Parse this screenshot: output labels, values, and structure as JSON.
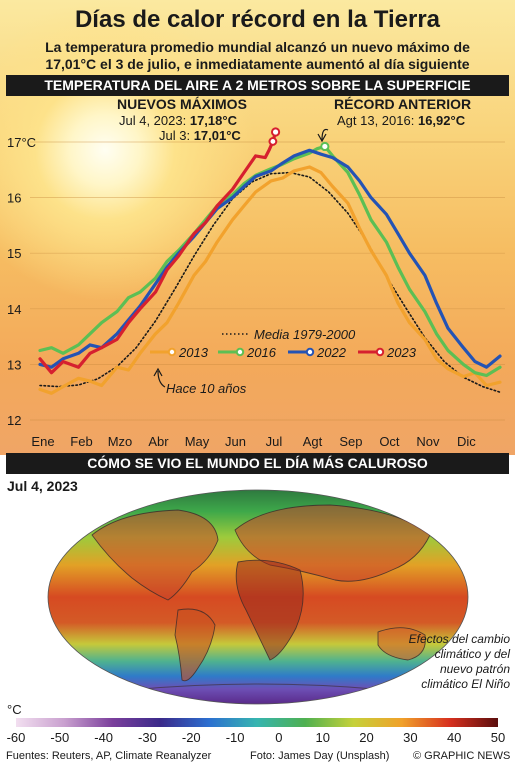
{
  "header": {
    "title": "Días de calor récord en la Tierra",
    "subtitle": "La temperatura promedio mundial alcanzó un nuevo máximo de 17,01°C el 3 de julio, e inmediatamente aumentó al día siguiente"
  },
  "section1": {
    "title": "TEMPERATURA DEL AIRE A 2 METROS SOBRE LA SUPERFICIE"
  },
  "annotations": {
    "new_max_title": "NUEVOS MÁXIMOS",
    "jul4_label": "Jul 4, 2023:",
    "jul4_value": "17,18°C",
    "jul3_label": "Jul 3:",
    "jul3_value": "17,01°C",
    "prev_record_title": "RÉCORD ANTERIOR",
    "prev_record_label": "Agt 13, 2016:",
    "prev_record_value": "16,92°C",
    "ten_years": "Hace 10 años"
  },
  "colors": {
    "y2013": "#f2a22d",
    "y2016": "#5cbf54",
    "y2022": "#2453b4",
    "y2023": "#d6202f",
    "mean": "#1a1a1a",
    "bar_bg": "#1a1a1a"
  },
  "chart_data": {
    "type": "line",
    "ylim": [
      12,
      17.4
    ],
    "yticks": [
      12,
      13,
      14,
      15,
      16,
      17
    ],
    "ytick_labels": [
      "12",
      "13",
      "14",
      "15",
      "16",
      "17°C"
    ],
    "categories": [
      "Ene",
      "Feb",
      "Mzo",
      "Abr",
      "May",
      "Jun",
      "Jul",
      "Agt",
      "Sep",
      "Oct",
      "Nov",
      "Dic"
    ],
    "x_label_positions": [
      0,
      1,
      2,
      3,
      4,
      5,
      6,
      7,
      8,
      9,
      10,
      11
    ],
    "legend": [
      {
        "key": "mean",
        "label": "Media 1979-2000"
      },
      {
        "key": "y2013",
        "label": "2013"
      },
      {
        "key": "y2016",
        "label": "2016"
      },
      {
        "key": "y2022",
        "label": "2022"
      },
      {
        "key": "y2023",
        "label": "2023"
      }
    ],
    "series": [
      {
        "key": "mean",
        "name": "Media 1979-2000",
        "x": [
          0,
          0.5,
          1,
          1.5,
          2,
          2.5,
          3,
          3.5,
          4,
          4.5,
          5,
          5.5,
          6,
          6.5,
          7,
          7.5,
          8,
          8.5,
          9,
          9.5,
          10,
          10.5,
          11,
          11.5,
          11.95
        ],
        "y": [
          12.62,
          12.6,
          12.63,
          12.74,
          12.96,
          13.3,
          13.78,
          14.35,
          14.95,
          15.5,
          15.98,
          16.28,
          16.43,
          16.45,
          16.37,
          16.1,
          15.72,
          15.2,
          14.58,
          14.02,
          13.48,
          13.05,
          12.77,
          12.6,
          12.5
        ]
      },
      {
        "key": "y2013",
        "name": "2013",
        "x": [
          0,
          0.3,
          0.6,
          1,
          1.3,
          1.6,
          2,
          2.3,
          2.6,
          3,
          3.3,
          3.6,
          4,
          4.3,
          4.6,
          5,
          5.3,
          5.6,
          6,
          6.3,
          6.6,
          7,
          7.3,
          7.6,
          8,
          8.3,
          8.6,
          9,
          9.3,
          9.6,
          10,
          10.3,
          10.6,
          11,
          11.3,
          11.6,
          11.95
        ],
        "y": [
          12.55,
          12.48,
          12.6,
          12.75,
          12.7,
          12.62,
          12.95,
          12.9,
          13.2,
          13.55,
          13.75,
          14.1,
          14.6,
          14.85,
          15.2,
          15.6,
          15.85,
          16.1,
          16.3,
          16.35,
          16.48,
          16.55,
          16.45,
          16.2,
          15.9,
          15.45,
          15.05,
          14.6,
          14.1,
          13.75,
          13.45,
          13.1,
          12.92,
          12.78,
          12.85,
          12.62,
          12.68
        ]
      },
      {
        "key": "y2016",
        "name": "2016",
        "x": [
          0,
          0.3,
          0.6,
          1,
          1.3,
          1.6,
          2,
          2.3,
          2.6,
          3,
          3.3,
          3.6,
          4,
          4.3,
          4.6,
          5,
          5.3,
          5.6,
          6,
          6.3,
          6.6,
          7,
          7.2,
          7.4,
          7.6,
          8,
          8.3,
          8.6,
          9,
          9.3,
          9.6,
          10,
          10.3,
          10.6,
          11,
          11.3,
          11.6,
          11.95
        ],
        "y": [
          13.25,
          13.3,
          13.2,
          13.35,
          13.55,
          13.75,
          13.95,
          14.2,
          14.3,
          14.55,
          14.85,
          15.05,
          15.35,
          15.6,
          15.85,
          16.05,
          16.25,
          16.4,
          16.52,
          16.6,
          16.7,
          16.8,
          16.88,
          16.92,
          16.75,
          16.45,
          16.05,
          15.6,
          15.2,
          14.75,
          14.35,
          13.95,
          13.55,
          13.25,
          13.0,
          12.85,
          12.8,
          12.95
        ]
      },
      {
        "key": "y2022",
        "name": "2022",
        "x": [
          0,
          0.3,
          0.6,
          1,
          1.3,
          1.6,
          2,
          2.3,
          2.6,
          3,
          3.3,
          3.6,
          4,
          4.3,
          4.6,
          5,
          5.3,
          5.6,
          6,
          6.3,
          6.6,
          7,
          7.3,
          7.6,
          8,
          8.3,
          8.6,
          9,
          9.3,
          9.6,
          10,
          10.3,
          10.6,
          11,
          11.3,
          11.6,
          11.95
        ],
        "y": [
          13.0,
          12.95,
          13.1,
          13.2,
          13.35,
          13.3,
          13.55,
          13.8,
          14.05,
          14.45,
          14.75,
          15.0,
          15.3,
          15.55,
          15.8,
          16.0,
          16.2,
          16.38,
          16.48,
          16.62,
          16.75,
          16.85,
          16.78,
          16.72,
          16.55,
          16.3,
          16.0,
          15.7,
          15.35,
          15.0,
          14.6,
          14.1,
          13.65,
          13.3,
          13.05,
          12.95,
          13.15
        ]
      },
      {
        "key": "y2023",
        "name": "2023",
        "x": [
          0,
          0.3,
          0.6,
          1,
          1.3,
          1.6,
          2,
          2.3,
          2.6,
          3,
          3.3,
          3.6,
          4,
          4.3,
          4.6,
          5,
          5.3,
          5.6,
          5.85,
          5.95,
          6.05,
          6.12
        ],
        "y": [
          13.1,
          12.85,
          13.05,
          12.95,
          13.2,
          13.3,
          13.45,
          13.75,
          14.0,
          14.3,
          14.7,
          14.95,
          15.35,
          15.55,
          15.85,
          16.15,
          16.45,
          16.75,
          16.72,
          16.85,
          17.01,
          17.18
        ]
      }
    ]
  },
  "section2": {
    "title": "CÓMO SE VIO EL MUNDO EL DÍA MÁS CALUROSO",
    "date": "Jul 4, 2023",
    "effects_text": "Efectos del cambio climático y del nuevo patrón climático El Niño",
    "unit": "°C",
    "scale_labels": [
      "-60",
      "-50",
      "-40",
      "-30",
      "-20",
      "-10",
      "0",
      "10",
      "20",
      "30",
      "40",
      "50"
    ],
    "scale_values": [
      -60,
      -50,
      -40,
      -30,
      -20,
      -10,
      0,
      10,
      20,
      30,
      40,
      50
    ]
  },
  "footer": {
    "sources": "Fuentes: Reuters, AP, Climate Reanalyzer",
    "photo": "Foto: James Day (Unsplash)",
    "credit": "© GRAPHIC NEWS"
  }
}
